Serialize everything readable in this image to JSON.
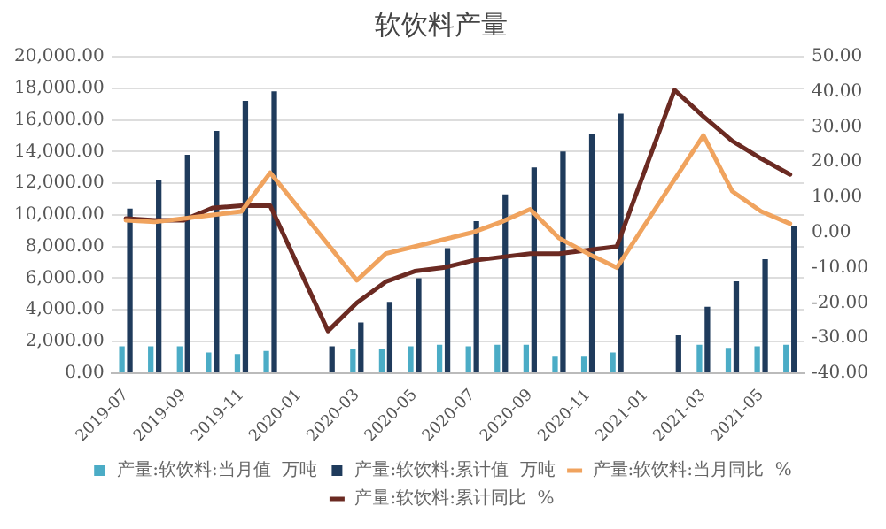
{
  "chart_data": {
    "type": "bar",
    "title": "软饮料产量",
    "categories": [
      "2019-07",
      null,
      "2019-09",
      null,
      "2019-11",
      null,
      "2020-01",
      null,
      "2020-03",
      null,
      "2020-05",
      null,
      "2020-07",
      null,
      "2020-09",
      null,
      "2020-11",
      null,
      "2021-01",
      null,
      "2021-03",
      null,
      "2021-05",
      null
    ],
    "series": [
      {
        "name": "产量:软饮料:当月值  万吨",
        "color": "#4bacc6",
        "values": [
          1700,
          1700,
          1700,
          1300,
          1200,
          1400,
          null,
          null,
          1500,
          1500,
          1700,
          1800,
          1700,
          1800,
          1800,
          1100,
          1100,
          1300,
          null,
          null,
          1800,
          1600,
          1700,
          1800
        ]
      },
      {
        "name": "产量:软饮料:累计值  万吨",
        "color": "#1f3b5c",
        "values": [
          10400,
          12200,
          13800,
          15300,
          17200,
          17800,
          null,
          1700,
          3200,
          4500,
          6000,
          7900,
          9600,
          11300,
          13000,
          14000,
          15100,
          16400,
          null,
          2400,
          4200,
          5800,
          7200,
          9300
        ]
      },
      {
        "name": "产量:软饮料:当月同比  %",
        "type": "line",
        "axis": "y2",
        "color": "#f0a35e",
        "values": [
          3.5,
          3,
          4,
          5,
          6,
          17,
          null,
          null,
          -13.6,
          -6,
          -4,
          -2,
          0,
          3,
          6.6,
          -1.6,
          -6,
          -10,
          null,
          null,
          27.6,
          11.7,
          6,
          2.5
        ]
      },
      {
        "name": "产量:软饮料:累计同比  %",
        "type": "line",
        "axis": "y2",
        "color": "#6b2a22",
        "values": [
          4,
          3.5,
          3.5,
          7,
          7.6,
          7.6,
          null,
          -28,
          -20,
          -14,
          -11,
          -10,
          -8,
          -7,
          -6,
          -6,
          -5,
          -4,
          null,
          40.5,
          33,
          26,
          21,
          16.5
        ]
      }
    ],
    "ylim": [
      0,
      20000
    ],
    "yticks": [
      {
        "value": 0,
        "label": "0.00"
      },
      {
        "value": 2000,
        "label": "2,000.00"
      },
      {
        "value": 4000,
        "label": "4,000.00"
      },
      {
        "value": 6000,
        "label": "6,000.00"
      },
      {
        "value": 8000,
        "label": "8,000.00"
      },
      {
        "value": 10000,
        "label": "10,000.00"
      },
      {
        "value": 12000,
        "label": "12,000.00"
      },
      {
        "value": 14000,
        "label": "14,000.00"
      },
      {
        "value": 16000,
        "label": "16,000.00"
      },
      {
        "value": 18000,
        "label": "18,000.00"
      },
      {
        "value": 20000,
        "label": "20,000.00"
      }
    ],
    "y2lim": [
      -40,
      50
    ],
    "y2ticks": [
      {
        "value": -40,
        "label": "-40.00"
      },
      {
        "value": -30,
        "label": "-30.00"
      },
      {
        "value": -20,
        "label": "-20.00"
      },
      {
        "value": -10,
        "label": "-10.00"
      },
      {
        "value": 0,
        "label": "0.00"
      },
      {
        "value": 10,
        "label": "10.00"
      },
      {
        "value": 20,
        "label": "20.00"
      },
      {
        "value": 30,
        "label": "30.00"
      },
      {
        "value": 40,
        "label": "40.00"
      },
      {
        "value": 50,
        "label": "50.00"
      }
    ],
    "grid": "y",
    "legend": "bottom"
  }
}
